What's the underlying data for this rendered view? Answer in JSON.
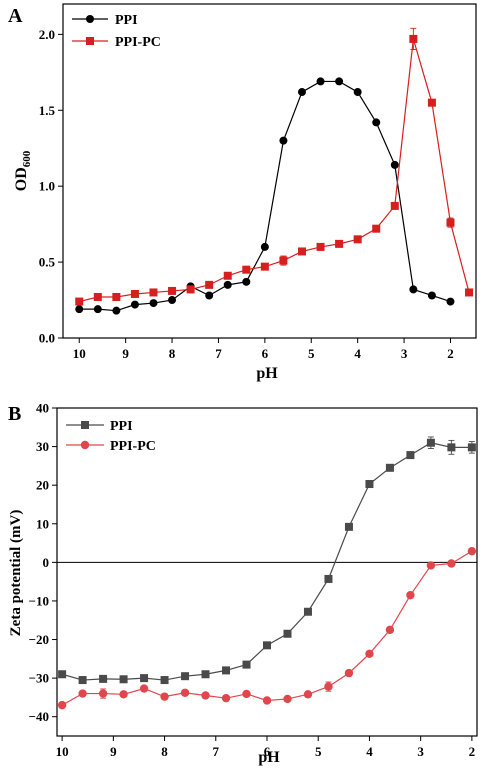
{
  "colors": {
    "axis": "#000000",
    "series_black": "#000000",
    "series_red": "#d61f1f",
    "series_gray": "#4a4a4a",
    "series_red_light": "#e0474c"
  },
  "chart_data": [
    {
      "type": "line",
      "panel_label": "A",
      "xlabel": "pH",
      "ylabel_main": "OD",
      "ylabel_sub": "600",
      "x_reversed": true,
      "xlim": [
        10.35,
        1.45
      ],
      "ylim": [
        0,
        2.2
      ],
      "xticks": [
        10,
        9,
        8,
        7,
        6,
        5,
        4,
        3,
        2
      ],
      "yticks": [
        0.0,
        0.5,
        1.0,
        1.5,
        2.0
      ],
      "ytick_labels": [
        "0.0",
        "0.5",
        "1.0",
        "1.5",
        "2.0"
      ],
      "legend_position": "top-left",
      "series": [
        {
          "name": "PPI",
          "marker": "circle",
          "color": "#000000",
          "x": [
            10,
            9.6,
            9.2,
            8.8,
            8.4,
            8.0,
            7.6,
            7.2,
            6.8,
            6.4,
            6.0,
            5.6,
            5.2,
            4.8,
            4.4,
            4.0,
            3.6,
            3.2,
            2.8,
            2.4,
            2.0
          ],
          "y": [
            0.19,
            0.19,
            0.18,
            0.22,
            0.23,
            0.25,
            0.34,
            0.28,
            0.35,
            0.37,
            0.6,
            1.3,
            1.62,
            1.69,
            1.69,
            1.62,
            1.42,
            1.14,
            0.32,
            0.28,
            0.24
          ]
        },
        {
          "name": "PPI-PC",
          "marker": "square",
          "color": "#d61f1f",
          "x": [
            10,
            9.6,
            9.2,
            8.8,
            8.4,
            8.0,
            7.6,
            7.2,
            6.8,
            6.4,
            6.0,
            5.6,
            5.2,
            4.8,
            4.4,
            4.0,
            3.6,
            3.2,
            2.8,
            2.4,
            2.0,
            1.6
          ],
          "y": [
            0.24,
            0.27,
            0.27,
            0.29,
            0.3,
            0.31,
            0.32,
            0.35,
            0.41,
            0.45,
            0.47,
            0.51,
            0.57,
            0.6,
            0.62,
            0.65,
            0.72,
            0.87,
            1.97,
            1.55,
            0.76,
            0.3
          ],
          "yerr": [
            0.01,
            0.01,
            0.01,
            0.01,
            0.01,
            0.01,
            0.02,
            0.01,
            0.01,
            0.01,
            0.02,
            0.03,
            0.01,
            0.01,
            0.01,
            0.01,
            0.01,
            0.01,
            0.07,
            0.02,
            0.03,
            0.01
          ]
        }
      ]
    },
    {
      "type": "line",
      "panel_label": "B",
      "xlabel": "pH",
      "ylabel": "Zeta potential (mV)",
      "x_reversed": true,
      "xlim": [
        10.1,
        1.9
      ],
      "ylim": [
        -45,
        40
      ],
      "xticks": [
        10,
        9,
        8,
        7,
        6,
        5,
        4,
        3,
        2
      ],
      "yticks": [
        -40,
        -30,
        -20,
        -10,
        0,
        10,
        20,
        30,
        40
      ],
      "ytick_labels": [
        "−40",
        "−30",
        "−20",
        "−10",
        "0",
        "10",
        "20",
        "30",
        "40"
      ],
      "zero_line": true,
      "legend_position": "top-left",
      "series": [
        {
          "name": "PPI",
          "marker": "square",
          "color": "#4a4a4a",
          "x": [
            10,
            9.6,
            9.2,
            8.8,
            8.4,
            8.0,
            7.6,
            7.2,
            6.8,
            6.4,
            6.0,
            5.6,
            5.2,
            4.8,
            4.4,
            4.0,
            3.6,
            3.2,
            2.8,
            2.4,
            2.0
          ],
          "y": [
            -29,
            -30.5,
            -30.2,
            -30.3,
            -30,
            -30.5,
            -29.5,
            -29,
            -28,
            -26.5,
            -21.5,
            -18.5,
            -12.8,
            -4.3,
            9.2,
            20.3,
            24.5,
            27.8,
            31,
            29.8,
            29.8
          ],
          "yerr": [
            0.6,
            0.5,
            0.5,
            0.5,
            0.5,
            0.5,
            0.5,
            0.5,
            0.5,
            0.6,
            0.6,
            0.6,
            0.6,
            0.6,
            0.6,
            0.7,
            0.7,
            0.8,
            1.5,
            1.8,
            1.5
          ]
        },
        {
          "name": "PPI-PC",
          "marker": "circle",
          "color": "#e0474c",
          "x": [
            10,
            9.6,
            9.2,
            8.8,
            8.4,
            8.0,
            7.6,
            7.2,
            6.8,
            6.4,
            6.0,
            5.6,
            5.2,
            4.8,
            4.4,
            4.0,
            3.6,
            3.2,
            2.8,
            2.4,
            2.0
          ],
          "y": [
            -37,
            -34,
            -34,
            -34.2,
            -32.7,
            -34.8,
            -33.8,
            -34.5,
            -35.2,
            -34.1,
            -35.8,
            -35.4,
            -34.2,
            -32.2,
            -28.7,
            -23.7,
            -17.5,
            -8.5,
            -0.8,
            -0.3,
            2.9
          ],
          "yerr": [
            0.6,
            0.6,
            1.2,
            0.6,
            0.6,
            0.6,
            0.6,
            0.6,
            0.6,
            0.6,
            0.6,
            0.6,
            0.6,
            1.2,
            0.6,
            0.6,
            0.6,
            0.6,
            0.6,
            0.6,
            0.6
          ]
        }
      ]
    }
  ]
}
